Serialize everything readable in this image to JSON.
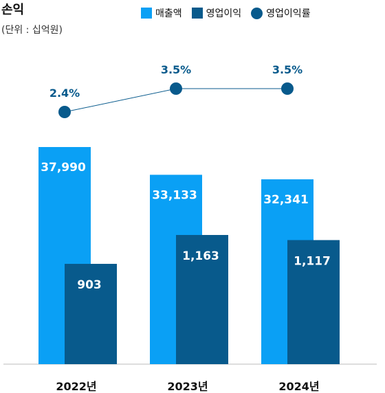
{
  "title": "손익",
  "unit_note": "(단위 : 십억원)",
  "legend": [
    {
      "label": "매출액",
      "color": "#0aa0f5",
      "shape": "square"
    },
    {
      "label": "영업이익",
      "color": "#085a8c",
      "shape": "square"
    },
    {
      "label": "영업이익률",
      "color": "#085a8c",
      "shape": "circle"
    }
  ],
  "chart_data": {
    "type": "bar",
    "categories": [
      "2022년",
      "2023년",
      "2024년"
    ],
    "series": [
      {
        "name": "매출액",
        "values": [
          37990,
          33133,
          32341
        ],
        "labels": [
          "37,990",
          "33,133",
          "32,341"
        ],
        "color": "#0aa0f5"
      },
      {
        "name": "영업이익",
        "values": [
          903,
          1163,
          1117
        ],
        "labels": [
          "903",
          "1,163",
          "1,117"
        ],
        "color": "#085a8c"
      }
    ],
    "line_series": {
      "name": "영업이익률",
      "values": [
        2.4,
        3.5,
        3.5
      ],
      "labels": [
        "2.4%",
        "3.5%",
        "3.5%"
      ],
      "color": "#085a8c"
    },
    "title": "손익",
    "ylabel": "",
    "unit": "십억원"
  }
}
